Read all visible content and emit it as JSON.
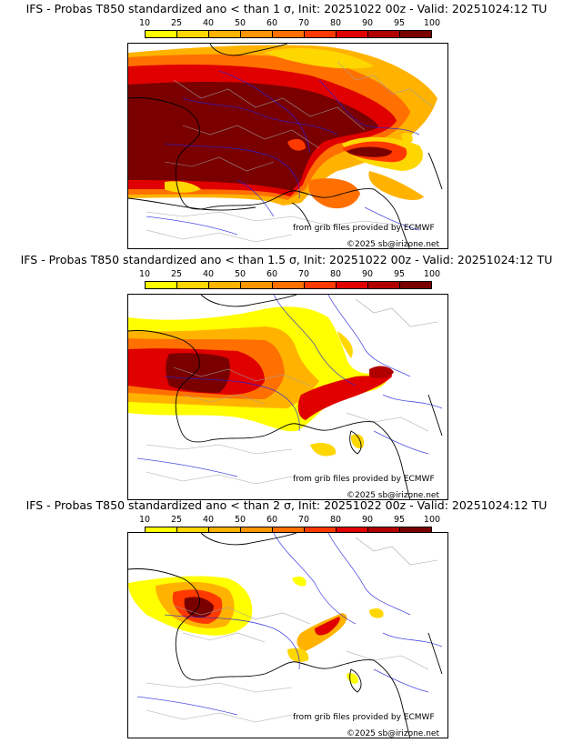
{
  "panels": [
    {
      "title": "IFS - Probas T850  standardized ano < than 1 σ, Init: 20251022 00z - Valid: 20251024:12 TU",
      "sigma": "1"
    },
    {
      "title": "IFS - Probas T850  standardized ano < than 1.5 σ, Init: 20251022 00z - Valid: 20251024:12 TU",
      "sigma": "1.5"
    },
    {
      "title": "IFS - Probas T850  standardized ano < than 2 σ, Init: 20251022 00z - Valid: 20251024:12 TU",
      "sigma": "2"
    }
  ],
  "colorbar": {
    "ticks": [
      "10",
      "25",
      "40",
      "50",
      "60",
      "70",
      "80",
      "90",
      "95",
      "100"
    ],
    "colors": [
      "#ffff00",
      "#ffd700",
      "#ffb300",
      "#ff9500",
      "#ff7000",
      "#ff3a00",
      "#e00000",
      "#b00000",
      "#7a0000"
    ]
  },
  "credits": {
    "source": "from grib files provided by ECMWF",
    "copyright": "©2025 sb@irizone.net"
  },
  "map_colors": {
    "coast": "#000000",
    "rivers": "#2222dd",
    "borders": "#a0a0a0"
  }
}
